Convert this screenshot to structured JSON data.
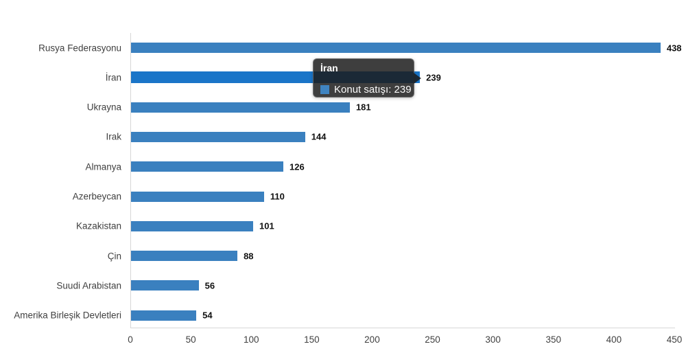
{
  "chart_data": {
    "type": "bar",
    "orientation": "horizontal",
    "title": "",
    "series_name": "Konut satışı",
    "categories": [
      "Rusya Federasyonu",
      "İran",
      "Ukrayna",
      "Irak",
      "Almanya",
      "Azerbeycan",
      "Kazakistan",
      "Çin",
      "Suudi Arabistan",
      "Amerika Birleşik Devletleri"
    ],
    "values": [
      438,
      239,
      181,
      144,
      126,
      110,
      101,
      88,
      56,
      54
    ],
    "xlabel": "",
    "ylabel": "",
    "xlim": [
      0,
      450
    ],
    "x_ticks": [
      0,
      50,
      100,
      150,
      200,
      250,
      300,
      350,
      400,
      450
    ],
    "grid": false,
    "legend": "none",
    "value_labels_shown": true,
    "bar_color": "#3a80bf",
    "highlight_color": "#1a75c8",
    "highlighted_index": 1
  },
  "tooltip": {
    "title": "İran",
    "label": "Konut satışı: 239",
    "value": 239,
    "swatch_color": "#3f84c1"
  },
  "colors": {
    "axis_line": "#d6d6d6",
    "category_label": "#404040",
    "tick_label": "#404040",
    "value_label": "#111111",
    "tooltip_background": "rgba(28,28,28,0.85)"
  }
}
